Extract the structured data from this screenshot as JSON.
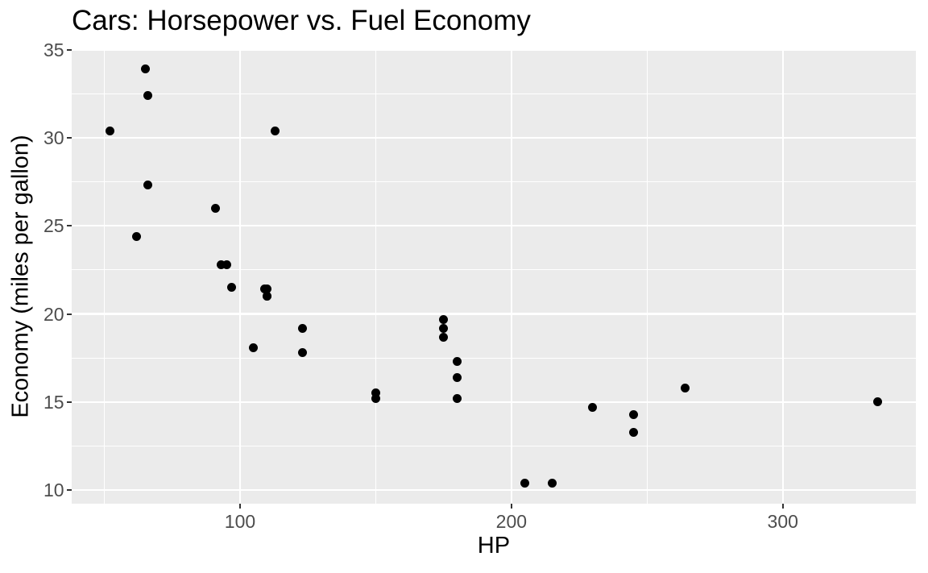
{
  "chart_data": {
    "type": "scatter",
    "title": "Cars: Horsepower vs. Fuel Economy",
    "xlabel": "HP",
    "ylabel": "Economy (miles per gallon)",
    "legend": "none",
    "grid": true,
    "x_axis": {
      "ticks": [
        100,
        200,
        300
      ],
      "minor_ticks": [
        50,
        150,
        250,
        350
      ],
      "range": [
        37.85,
        349.15
      ]
    },
    "y_axis": {
      "ticks": [
        10,
        15,
        20,
        25,
        30,
        35
      ],
      "minor_ticks": [
        12.5,
        17.5,
        22.5,
        27.5,
        32.5
      ],
      "range": [
        9.225,
        35.075
      ]
    },
    "points": [
      [
        110,
        21.0
      ],
      [
        110,
        21.0
      ],
      [
        93,
        22.8
      ],
      [
        110,
        21.4
      ],
      [
        175,
        18.7
      ],
      [
        105,
        18.1
      ],
      [
        245,
        14.3
      ],
      [
        62,
        24.4
      ],
      [
        95,
        22.8
      ],
      [
        123,
        19.2
      ],
      [
        123,
        17.8
      ],
      [
        180,
        16.4
      ],
      [
        180,
        17.3
      ],
      [
        180,
        15.2
      ],
      [
        205,
        10.4
      ],
      [
        215,
        10.4
      ],
      [
        230,
        14.7
      ],
      [
        66,
        32.4
      ],
      [
        52,
        30.4
      ],
      [
        65,
        33.9
      ],
      [
        97,
        21.5
      ],
      [
        150,
        15.5
      ],
      [
        150,
        15.2
      ],
      [
        245,
        13.3
      ],
      [
        175,
        19.2
      ],
      [
        66,
        27.3
      ],
      [
        91,
        26.0
      ],
      [
        113,
        30.4
      ],
      [
        264,
        15.8
      ],
      [
        175,
        19.7
      ],
      [
        335,
        15.0
      ],
      [
        109,
        21.4
      ]
    ]
  },
  "style": {
    "page_bg": "#FFFFFF",
    "panel_bg": "#EBEBEB",
    "grid_color": "#FFFFFF",
    "point_color": "#000000",
    "axis_text_color": "#4D4D4D",
    "tick_mark_color": "#333333",
    "title_color": "#000000"
  }
}
